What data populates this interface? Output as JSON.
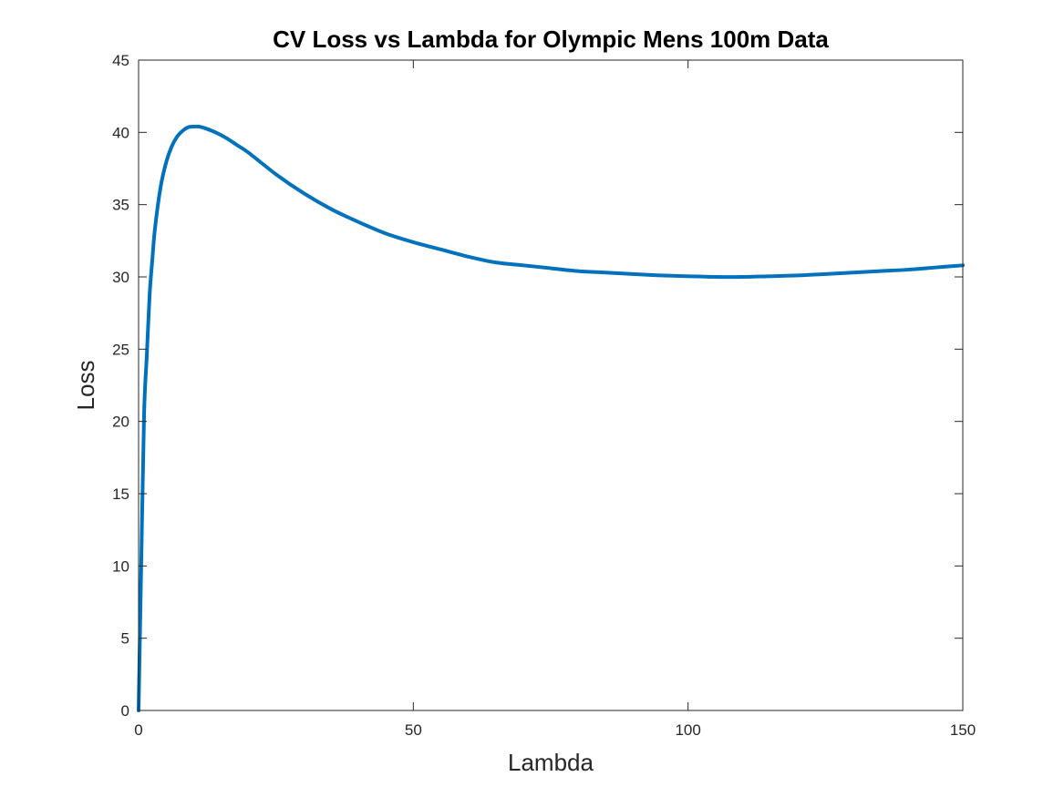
{
  "chart_data": {
    "type": "line",
    "title": "CV Loss vs Lambda for Olympic Mens 100m Data",
    "xlabel": "Lambda",
    "ylabel": "Loss",
    "xlim": [
      0,
      150
    ],
    "ylim": [
      0,
      45
    ],
    "xticks": [
      0,
      50,
      100,
      150
    ],
    "yticks": [
      0,
      5,
      10,
      15,
      20,
      25,
      30,
      35,
      40,
      45
    ],
    "grid": false,
    "legend": "none",
    "line_color": "#0072BD",
    "series": [
      {
        "x": [
          0,
          0.5,
          1,
          1.5,
          2,
          2.5,
          3,
          4,
          5,
          6,
          7,
          8,
          9,
          10,
          11,
          12,
          14,
          16,
          18,
          20,
          25,
          30,
          35,
          40,
          45,
          50,
          55,
          60,
          65,
          70,
          75,
          80,
          85,
          90,
          95,
          100,
          105,
          110,
          115,
          120,
          125,
          130,
          135,
          140,
          145,
          150
        ],
        "y": [
          0,
          10.5,
          20.5,
          24.6,
          28.7,
          31.2,
          33.4,
          36.2,
          37.9,
          39.0,
          39.7,
          40.1,
          40.35,
          40.4,
          40.4,
          40.3,
          40.0,
          39.6,
          39.1,
          38.6,
          37.1,
          35.8,
          34.7,
          33.8,
          33.0,
          32.4,
          31.9,
          31.4,
          31.0,
          30.8,
          30.6,
          30.4,
          30.3,
          30.2,
          30.1,
          30.05,
          30.0,
          30.0,
          30.05,
          30.1,
          30.2,
          30.3,
          30.4,
          30.5,
          30.65,
          30.8
        ]
      }
    ]
  }
}
